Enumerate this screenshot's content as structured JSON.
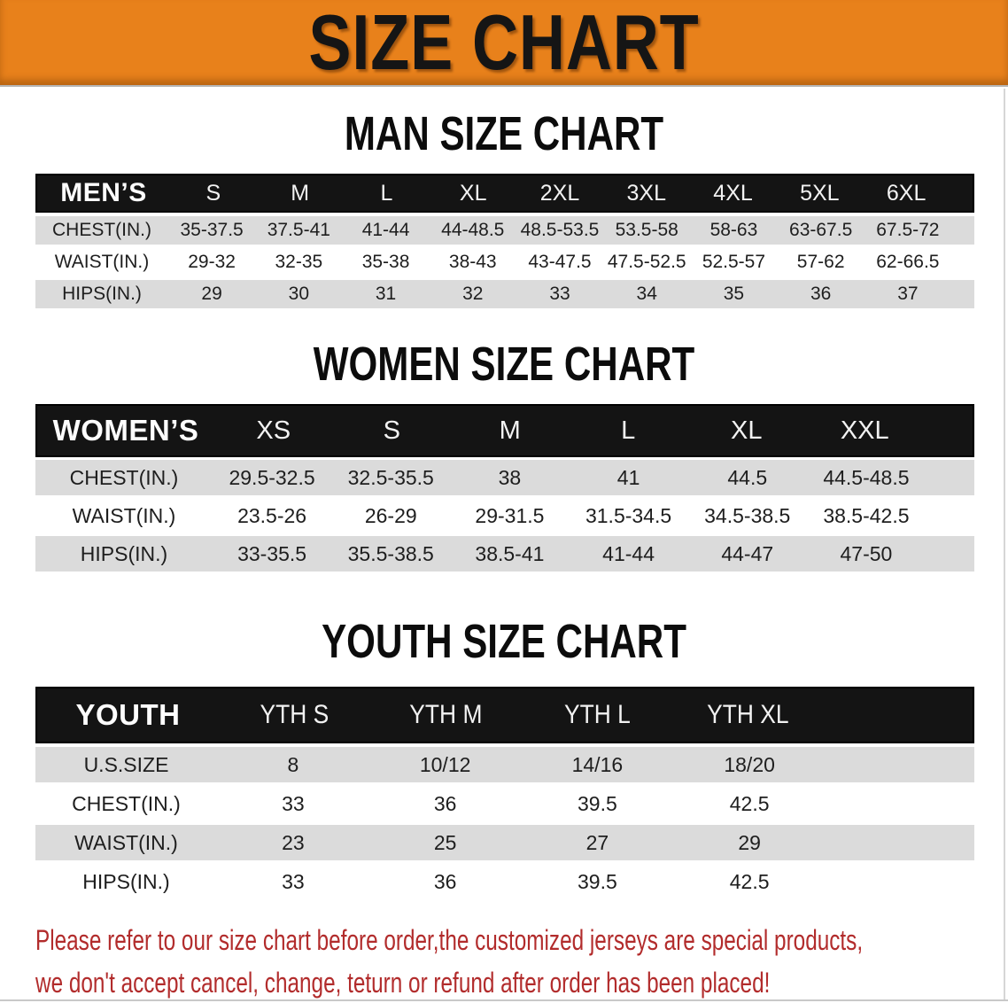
{
  "banner": {
    "title": "SIZE CHART"
  },
  "sections": [
    {
      "heading": "MAN SIZE CHART",
      "table": {
        "label": "MEN’S",
        "sizes": [
          "S",
          "M",
          "L",
          "XL",
          "2XL",
          "3XL",
          "4XL",
          "5XL",
          "6XL"
        ],
        "rows": [
          {
            "label": "CHEST(IN.)",
            "values": [
              "35-37.5",
              "37.5-41",
              "41-44",
              "44-48.5",
              "48.5-53.5",
              "53.5-58",
              "58-63",
              "63-67.5",
              "67.5-72"
            ]
          },
          {
            "label": "WAIST(IN.)",
            "values": [
              "29-32",
              "32-35",
              "35-38",
              "38-43",
              "43-47.5",
              "47.5-52.5",
              "52.5-57",
              "57-62",
              "62-66.5"
            ]
          },
          {
            "label": "HIPS(IN.)",
            "values": [
              "29",
              "30",
              "31",
              "32",
              "33",
              "34",
              "35",
              "36",
              "37"
            ]
          }
        ]
      }
    },
    {
      "heading": "WOMEN SIZE CHART",
      "table": {
        "label": "WOMEN’S",
        "sizes": [
          "XS",
          "S",
          "M",
          "L",
          "XL",
          "XXL"
        ],
        "rows": [
          {
            "label": "CHEST(IN.)",
            "values": [
              "29.5-32.5",
              "32.5-35.5",
              "38",
              "41",
              "44.5",
              "44.5-48.5"
            ]
          },
          {
            "label": "WAIST(IN.)",
            "values": [
              "23.5-26",
              "26-29",
              "29-31.5",
              "31.5-34.5",
              "34.5-38.5",
              "38.5-42.5"
            ]
          },
          {
            "label": "HIPS(IN.)",
            "values": [
              "33-35.5",
              "35.5-38.5",
              "38.5-41",
              "41-44",
              "44-47",
              "47-50"
            ]
          }
        ]
      }
    },
    {
      "heading": "YOUTH SIZE CHART",
      "table": {
        "label": "YOUTH",
        "sizes": [
          "YTH S",
          "YTH M",
          "YTH L",
          "YTH XL"
        ],
        "rows": [
          {
            "label": "U.S.SIZE",
            "values": [
              "8",
              "10/12",
              "14/16",
              "18/20"
            ]
          },
          {
            "label": "CHEST(IN.)",
            "values": [
              "33",
              "36",
              "39.5",
              "42.5"
            ]
          },
          {
            "label": "WAIST(IN.)",
            "values": [
              "23",
              "25",
              "27",
              "29"
            ]
          },
          {
            "label": "HIPS(IN.)",
            "values": [
              "33",
              "36",
              "39.5",
              "42.5"
            ]
          }
        ]
      }
    }
  ],
  "notice": {
    "line1": "Please refer to our size chart before order,the customized jerseys are special products,",
    "line2": "we don't accept cancel, change, teturn or refund after order has been placed!"
  },
  "colors": {
    "banner_bg": "#E8811B",
    "banner_text": "#151515",
    "table_header_bg": "#141414",
    "table_header_text": "#FFFFFF",
    "row_gray": "#DBDBDB",
    "row_white": "#FFFFFF",
    "notice_red": "#B22C2C"
  }
}
